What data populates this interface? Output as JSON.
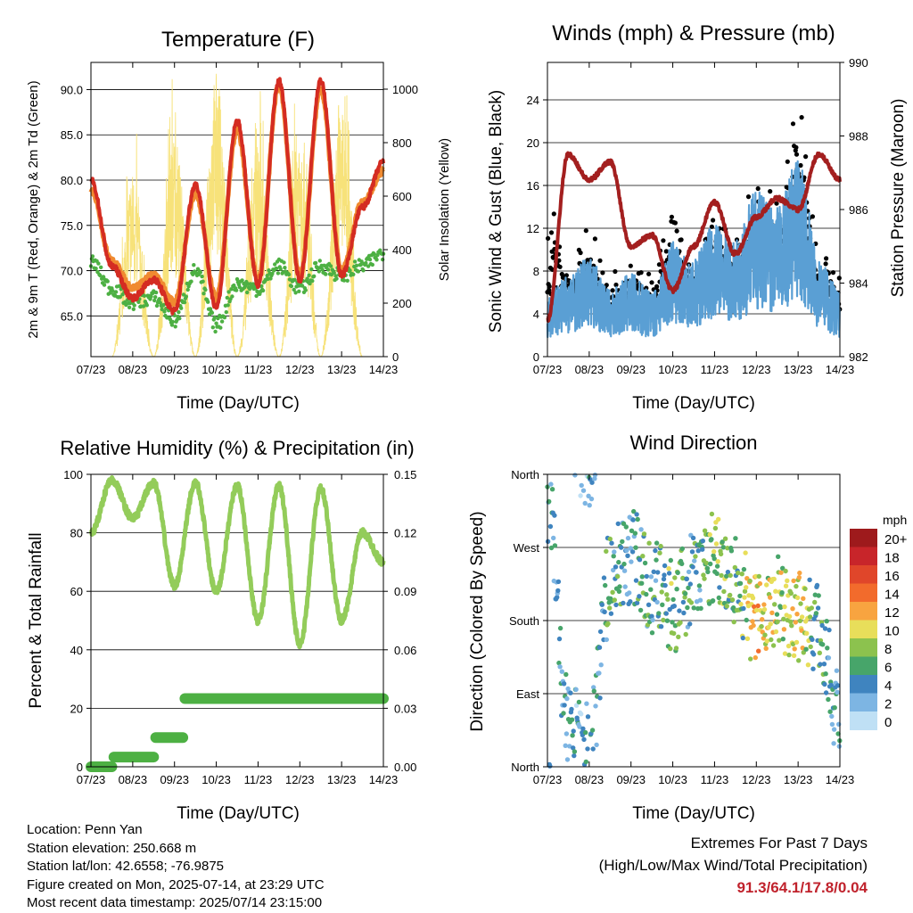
{
  "colors": {
    "temp_2m": "#d42c22",
    "temp_9m": "#f08a30",
    "dewpoint": "#4db043",
    "insolation": "#f7e27a",
    "wind": "#5a9fd4",
    "gust": "#000000",
    "pressure": "#a31f1f",
    "humidity": "#93cc5a",
    "rain": "#4db043",
    "extremes": "#c0222c"
  },
  "x_ticks": [
    "07/23",
    "08/23",
    "09/23",
    "10/23",
    "11/23",
    "12/23",
    "13/23",
    "14/23"
  ],
  "panels": {
    "temperature": {
      "title": "Temperature (F)",
      "xlabel": "Time (Day/UTC)",
      "ylabel": "2m & 9m T (Red, Orange) & 2m Td (Green)",
      "y2label": "Solar Insolation (Yellow)",
      "yticks": [
        "90.0",
        "85.0",
        "80.0",
        "75.0",
        "70.0",
        "65.0"
      ],
      "y2ticks": [
        "1000",
        "800",
        "600",
        "400",
        "200",
        "0"
      ]
    },
    "winds": {
      "title": "Winds (mph) & Pressure (mb)",
      "xlabel": "Time (Day/UTC)",
      "ylabel": "Sonic Wind & Gust (Blue, Black)",
      "y2label": "Station Pressure (Maroon)",
      "yticks": [
        "24",
        "20",
        "16",
        "12",
        "8",
        "4",
        "0"
      ],
      "y2ticks": [
        "990",
        "988",
        "986",
        "984",
        "982"
      ]
    },
    "humidity": {
      "title": "Relative Humidity (%) & Precipitation (in)",
      "xlabel": "Time (Day/UTC)",
      "ylabel": "Percent & Total Rainfall",
      "yticks": [
        "100",
        "80",
        "60",
        "40",
        "20",
        "0"
      ],
      "y2ticks": [
        "0.15",
        "0.12",
        "0.09",
        "0.06",
        "0.03",
        "0.00"
      ]
    },
    "direction": {
      "title": "Wind Direction",
      "xlabel": "Time (Day/UTC)",
      "ylabel": "Direction (Colored By Speed)",
      "yticks": [
        "North",
        "West",
        "South",
        "East",
        "North"
      ],
      "legend_title": "mph",
      "legend_labels": [
        "20+",
        "18",
        "16",
        "14",
        "12",
        "10",
        "8",
        "6",
        "4",
        "2",
        "0"
      ],
      "legend_colors": [
        "#9e1a1c",
        "#c8252a",
        "#e0462a",
        "#f26b2c",
        "#f8a440",
        "#e8de5a",
        "#8cc24e",
        "#47a56a",
        "#3f84bf",
        "#7db5e3",
        "#bfe0f5"
      ]
    }
  },
  "info": {
    "location": "Location: Penn Yan",
    "elevation": "Station elevation: 250.668 m",
    "latlon": "Station lat/lon: 42.6558; -76.9875",
    "created": "Figure created on Mon, 2025-07-14, at 23:29 UTC",
    "recent": "Most recent data timestamp: 2025/07/14 23:15:00"
  },
  "extremes": {
    "line1": "Extremes For Past 7 Days",
    "line2": "(High/Low/Max Wind/Total Precipitation)",
    "values": "91.3/64.1/17.8/0.04"
  },
  "chart_data": [
    {
      "type": "line",
      "title": "Temperature (F)",
      "xlabel": "Time (Day/UTC)",
      "ylabel": "2m & 9m T (Red, Orange) & 2m Td (Green)",
      "y2label": "Solar Insolation (Yellow)",
      "x": [
        7.0,
        7.5,
        8.0,
        8.5,
        9.0,
        9.5,
        10.0,
        10.5,
        11.0,
        11.5,
        12.0,
        12.5,
        13.0,
        13.5,
        14.0
      ],
      "ylim": [
        60.5,
        93
      ],
      "y2lim": [
        0,
        1100
      ],
      "series": [
        {
          "name": "2m T",
          "axis": "left",
          "values": [
            80,
            70.5,
            67,
            69,
            65.5,
            79.5,
            66,
            86.5,
            68.5,
            91,
            69,
            91,
            69.5,
            77,
            82
          ]
        },
        {
          "name": "9m T",
          "axis": "left",
          "values": [
            79,
            71,
            68,
            69.5,
            66.5,
            78.5,
            67,
            85.5,
            69,
            90.5,
            69.5,
            90,
            70,
            77.5,
            81
          ]
        },
        {
          "name": "2m Td",
          "axis": "left",
          "values": [
            71,
            68,
            66.5,
            67,
            64.5,
            70,
            64,
            68.5,
            68,
            70.5,
            68,
            70.5,
            69.5,
            70.5,
            72
          ]
        },
        {
          "name": "Solar Insolation",
          "axis": "right",
          "values": [
            0,
            0,
            700,
            0,
            850,
            0,
            1070,
            0,
            800,
            0,
            900,
            0,
            950,
            0,
            0
          ]
        }
      ]
    },
    {
      "type": "line",
      "title": "Winds (mph) & Pressure (mb)",
      "xlabel": "Time (Day/UTC)",
      "ylabel": "Sonic Wind & Gust (Blue, Black)",
      "y2label": "Station Pressure (Maroon)",
      "x": [
        7.0,
        7.5,
        8.0,
        8.5,
        9.0,
        9.5,
        10.0,
        10.5,
        11.0,
        11.5,
        12.0,
        12.5,
        13.0,
        13.5,
        14.0
      ],
      "ylim": [
        0,
        27.5
      ],
      "y2lim": [
        982,
        990
      ],
      "series": [
        {
          "name": "Sonic Wind",
          "axis": "left",
          "values": [
            4,
            5,
            6,
            4,
            5,
            4,
            7,
            6,
            8,
            7,
            10,
            9,
            12,
            6,
            4
          ]
        },
        {
          "name": "Gust",
          "axis": "left",
          "values": [
            19,
            9,
            12,
            8,
            9,
            8,
            14,
            9,
            13,
            11,
            17,
            15,
            25,
            10,
            8
          ]
        },
        {
          "name": "Station Pressure",
          "axis": "right",
          "values": [
            983,
            987.5,
            986.8,
            987.3,
            985,
            985.3,
            983.8,
            985,
            986.2,
            984.8,
            985.8,
            986.3,
            986,
            987.5,
            986.8
          ]
        }
      ]
    },
    {
      "type": "line",
      "title": "Relative Humidity (%) & Precipitation (in)",
      "xlabel": "Time (Day/UTC)",
      "ylabel": "Percent & Total Rainfall",
      "x": [
        7.0,
        7.5,
        8.0,
        8.5,
        9.0,
        9.5,
        10.0,
        10.5,
        11.0,
        11.5,
        12.0,
        12.5,
        13.0,
        13.5,
        14.0
      ],
      "ylim": [
        0,
        100
      ],
      "y2lim": [
        0,
        0.15
      ],
      "series": [
        {
          "name": "Relative Humidity",
          "axis": "left",
          "values": [
            80,
            98,
            85,
            97,
            62,
            97,
            60,
            96,
            50,
            96,
            42,
            95,
            50,
            80,
            70
          ]
        },
        {
          "name": "Total Rainfall",
          "axis": "right",
          "values": [
            0,
            0,
            0.005,
            0.005,
            0.015,
            0.015,
            0.035,
            0.035,
            0.035,
            0.035,
            0.035,
            0.035,
            0.035,
            0.035,
            0.035
          ]
        }
      ]
    },
    {
      "type": "scatter",
      "title": "Wind Direction",
      "xlabel": "Time (Day/UTC)",
      "ylabel": "Direction (Colored By Speed)",
      "x": [
        7.0,
        7.5,
        8.0,
        8.5,
        9.0,
        9.5,
        10.0,
        10.5,
        11.0,
        11.5,
        12.0,
        12.5,
        13.0,
        13.5,
        14.0
      ],
      "ylim": [
        0,
        360
      ],
      "yticks": [
        "North",
        "East",
        "South",
        "West",
        "North"
      ],
      "series": [
        {
          "name": "Direction",
          "values": [
            330,
            50,
            20,
            230,
            260,
            220,
            200,
            230,
            260,
            230,
            180,
            200,
            190,
            170,
            60
          ]
        }
      ]
    }
  ]
}
